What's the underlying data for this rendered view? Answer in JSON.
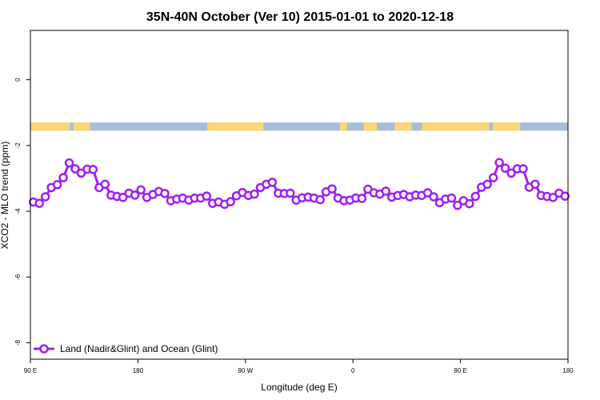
{
  "chart_data": {
    "type": "line",
    "title": "35N-40N October (Ver 10)   2015-01-01 to 2020-12-18",
    "xlabel": "Longitude (deg E)",
    "ylabel": "XCO2 - MLO trend (ppm)",
    "xlim": [
      90,
      540
    ],
    "ylim": [
      -8.5,
      1.5
    ],
    "x_ticks": [
      {
        "value": 90,
        "label": "90 E"
      },
      {
        "value": 180,
        "label": "180"
      },
      {
        "value": 270,
        "label": "90 W"
      },
      {
        "value": 360,
        "label": "0"
      },
      {
        "value": 450,
        "label": "90 E"
      },
      {
        "value": 540,
        "label": "180"
      }
    ],
    "y_ticks": [
      {
        "value": 0,
        "label": "0"
      },
      {
        "value": -2,
        "label": "-2"
      },
      {
        "value": -4,
        "label": "-4"
      },
      {
        "value": -6,
        "label": "-6"
      },
      {
        "value": -8,
        "label": "-8"
      }
    ],
    "land_ocean_strip": {
      "y_range": [
        -1.3,
        -1.55
      ],
      "ocean_color": "#a7bedb",
      "land_color": "#fbd872",
      "land_intervals": [
        [
          90,
          123
        ],
        [
          126,
          140
        ],
        [
          238,
          285
        ],
        [
          349,
          355
        ],
        [
          369,
          380
        ],
        [
          395,
          409
        ],
        [
          418,
          474
        ],
        [
          477,
          500
        ]
      ]
    },
    "series": [
      {
        "name": "Land (Nadir&Glint) and Ocean (Glint)",
        "color": "#a020f0",
        "x": [
          92.5,
          97.5,
          102.5,
          107.5,
          112.5,
          117.5,
          122.5,
          127.5,
          132.5,
          137.5,
          142.5,
          147.5,
          152.5,
          157.5,
          162.5,
          167.5,
          172.5,
          177.5,
          182.5,
          187.5,
          192.5,
          197.5,
          202.5,
          207.5,
          212.5,
          217.5,
          222.5,
          227.5,
          232.5,
          237.5,
          242.5,
          247.5,
          252.5,
          257.5,
          262.5,
          267.5,
          272.5,
          277.5,
          282.5,
          287.5,
          292.5,
          297.5,
          302.5,
          307.5,
          312.5,
          317.5,
          322.5,
          327.5,
          332.5,
          337.5,
          342.5,
          347.5,
          352.5,
          357.5,
          362.5,
          367.5,
          372.5,
          377.5,
          382.5,
          387.5,
          392.5,
          397.5,
          402.5,
          407.5,
          412.5,
          417.5,
          422.5,
          427.5,
          432.5,
          437.5,
          442.5,
          447.5,
          452.5,
          457.5,
          462.5,
          467.5,
          472.5,
          477.5,
          482.5,
          487.5,
          492.5,
          497.5,
          502.5,
          507.5,
          512.5,
          517.5,
          522.5,
          527.5,
          532.5,
          537.5
        ],
        "values": [
          -3.72,
          -3.76,
          -3.56,
          -3.28,
          -3.19,
          -2.98,
          -2.53,
          -2.71,
          -2.84,
          -2.72,
          -2.73,
          -3.28,
          -3.18,
          -3.51,
          -3.55,
          -3.58,
          -3.45,
          -3.51,
          -3.35,
          -3.58,
          -3.49,
          -3.4,
          -3.46,
          -3.68,
          -3.63,
          -3.6,
          -3.66,
          -3.6,
          -3.6,
          -3.54,
          -3.76,
          -3.72,
          -3.79,
          -3.71,
          -3.53,
          -3.43,
          -3.52,
          -3.48,
          -3.28,
          -3.18,
          -3.12,
          -3.45,
          -3.46,
          -3.45,
          -3.66,
          -3.59,
          -3.57,
          -3.6,
          -3.65,
          -3.41,
          -3.32,
          -3.6,
          -3.68,
          -3.66,
          -3.6,
          -3.61,
          -3.33,
          -3.44,
          -3.48,
          -3.39,
          -3.57,
          -3.52,
          -3.49,
          -3.56,
          -3.51,
          -3.52,
          -3.44,
          -3.56,
          -3.74,
          -3.63,
          -3.6,
          -3.82,
          -3.68,
          -3.77,
          -3.55,
          -3.27,
          -3.18,
          -2.98,
          -2.52,
          -2.69,
          -2.84,
          -2.71,
          -2.71,
          -3.27,
          -3.18,
          -3.52,
          -3.55,
          -3.58,
          -3.45,
          -3.54
        ]
      }
    ],
    "legend": "bottom-left",
    "grid": false
  }
}
